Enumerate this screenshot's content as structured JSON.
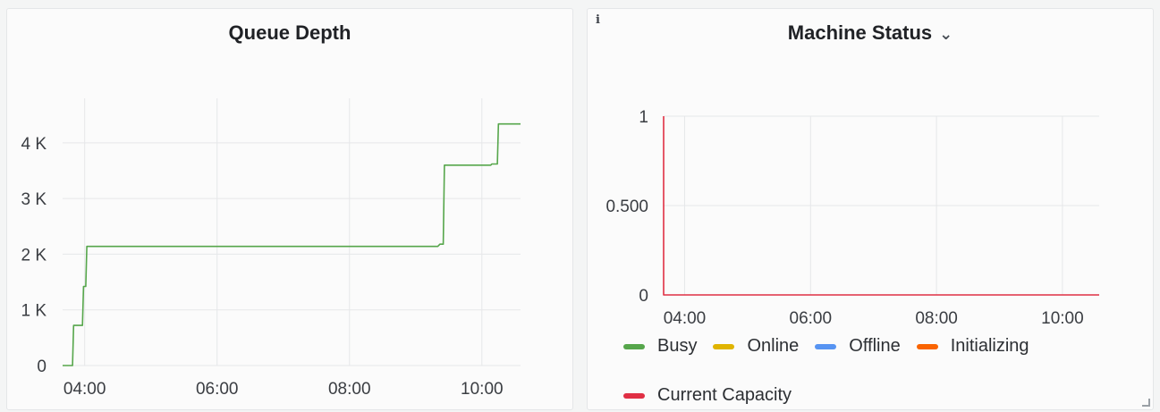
{
  "chart_data": [
    {
      "type": "line",
      "title": "Queue Depth",
      "xlabel": "",
      "ylabel": "",
      "x_ticks": [
        "04:00",
        "06:00",
        "08:00",
        "10:00"
      ],
      "y_ticks": [
        "0",
        "1 K",
        "2 K",
        "3 K",
        "4 K"
      ],
      "xlim": [
        "03:40",
        "10:35"
      ],
      "ylim": [
        0,
        4800
      ],
      "grid": true,
      "series": [
        {
          "color": "#56a64b",
          "points": [
            [
              "03:40",
              0
            ],
            [
              "03:49",
              0
            ],
            [
              "03:50",
              720
            ],
            [
              "03:58",
              720
            ],
            [
              "03:59",
              1420
            ],
            [
              "04:01",
              1420
            ],
            [
              "04:02",
              2140
            ],
            [
              "09:20",
              2140
            ],
            [
              "09:22",
              2180
            ],
            [
              "09:25",
              2180
            ],
            [
              "09:26",
              3600
            ],
            [
              "10:08",
              3600
            ],
            [
              "10:09",
              3620
            ],
            [
              "10:14",
              3620
            ],
            [
              "10:15",
              4340
            ],
            [
              "10:35",
              4340
            ]
          ]
        }
      ]
    },
    {
      "type": "line",
      "title": "Machine Status",
      "xlabel": "",
      "ylabel": "",
      "x_ticks": [
        "04:00",
        "06:00",
        "08:00",
        "10:00"
      ],
      "y_ticks": [
        "0",
        "0.500",
        "1"
      ],
      "xlim": [
        "03:40",
        "10:35"
      ],
      "ylim": [
        0,
        1
      ],
      "grid": true,
      "legend_position": "bottom",
      "series": [
        {
          "name": "Busy",
          "color": "#56a64b",
          "points": []
        },
        {
          "name": "Online",
          "color": "#e0b400",
          "points": []
        },
        {
          "name": "Offline",
          "color": "#5794f2",
          "points": []
        },
        {
          "name": "Initializing",
          "color": "#fa6400",
          "points": []
        },
        {
          "name": "Current Capacity",
          "color": "#e02f44",
          "points": [
            [
              "03:40",
              1
            ],
            [
              "03:40",
              0
            ],
            [
              "10:35",
              0
            ]
          ]
        }
      ]
    }
  ]
}
